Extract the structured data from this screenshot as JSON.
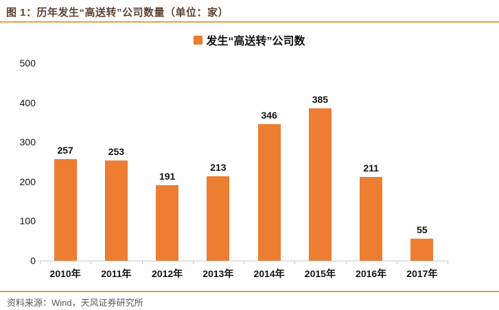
{
  "figure": {
    "title": "图 1：历年发生“高送转”公司数量（单位：家）",
    "source": "资料来源：Wind，天风证券研究所"
  },
  "legend": {
    "label": "发生“高送转”公司数"
  },
  "colors": {
    "bar": "#ED7D31",
    "title_text": "#5C4433",
    "rule": "#DDA14D",
    "source_text": "#595959",
    "axis": "#C6C6C6",
    "label_text": "#111111"
  },
  "chart_data": {
    "type": "bar",
    "title": "发生“高送转”公司数",
    "categories": [
      "2010年",
      "2011年",
      "2012年",
      "2013年",
      "2014年",
      "2015年",
      "2016年",
      "2017年"
    ],
    "values": [
      257,
      253,
      191,
      213,
      346,
      385,
      211,
      55
    ],
    "xlabel": "",
    "ylabel": "",
    "ylim": [
      0,
      500
    ],
    "yticks": [
      0,
      100,
      200,
      300,
      400,
      500
    ],
    "grid": false,
    "legend_position": "top-center",
    "data_labels": true
  }
}
